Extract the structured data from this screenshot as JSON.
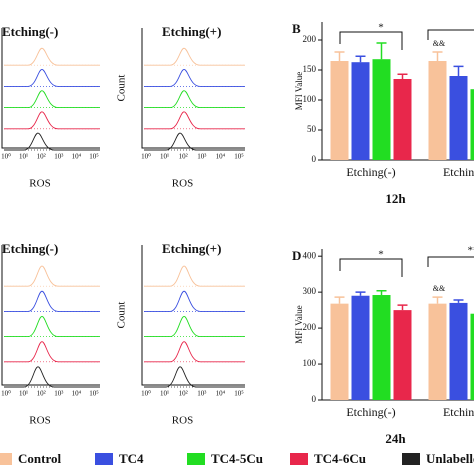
{
  "groups": [
    {
      "name": "Control",
      "color": "#f8c29a"
    },
    {
      "name": "TC4",
      "color": "#3a4fe0"
    },
    {
      "name": "TC4-5Cu",
      "color": "#22dd22"
    },
    {
      "name": "TC4-6Cu",
      "color": "#e8274b"
    },
    {
      "name": "Unlabelled",
      "color": "#222222"
    }
  ],
  "histograms": [
    {
      "title": "Etching(-)",
      "xlabel": "ROS",
      "xticks": [
        "10⁰",
        "10¹",
        "10²",
        "10³",
        "10⁴",
        "10⁵"
      ]
    },
    {
      "title": "Etching(+)",
      "xlabel": "ROS",
      "ylabel": "Count",
      "xticks": [
        "10⁰",
        "10¹",
        "10²",
        "10³",
        "10⁴",
        "10⁵"
      ]
    },
    {
      "title": "Etching(-)",
      "xlabel": "ROS",
      "xticks": [
        "10⁰",
        "10¹",
        "10²",
        "10³",
        "10⁴",
        "10⁵"
      ]
    },
    {
      "title": "Etching(+)",
      "xlabel": "ROS",
      "ylabel": "Count",
      "xticks": [
        "10⁰",
        "10¹",
        "10²",
        "10³",
        "10⁴",
        "10⁵"
      ]
    }
  ],
  "chart_data": [
    {
      "type": "bar",
      "label": "B",
      "ylabel": "MFI Value",
      "subtitle": "12h",
      "categories": [
        "Etching(-)",
        "Etching(+)"
      ],
      "ylim": [
        0,
        230
      ],
      "yticks": [
        0,
        50,
        100,
        150,
        200
      ],
      "series": [
        {
          "values": [
            165,
            165
          ],
          "errors": [
            15,
            15
          ]
        },
        {
          "values": [
            163,
            140
          ],
          "errors": [
            10,
            16
          ]
        },
        {
          "values": [
            168,
            118
          ],
          "errors": [
            27,
            10
          ]
        },
        {
          "values": [
            135,
            null
          ],
          "errors": [
            8,
            null
          ]
        }
      ],
      "annotations": [
        "*",
        "&&"
      ]
    },
    {
      "type": "bar",
      "label": "D",
      "ylabel": "MFI Value",
      "subtitle": "24h",
      "categories": [
        "Etching(-)",
        "Etching(+)"
      ],
      "ylim": [
        0,
        420
      ],
      "yticks": [
        0,
        100,
        200,
        300,
        400
      ],
      "series": [
        {
          "values": [
            268,
            268
          ],
          "errors": [
            18,
            18
          ]
        },
        {
          "values": [
            290,
            270
          ],
          "errors": [
            10,
            8
          ]
        },
        {
          "values": [
            292,
            240
          ],
          "errors": [
            12,
            10
          ]
        },
        {
          "values": [
            250,
            null
          ],
          "errors": [
            14,
            null
          ]
        }
      ],
      "annotations": [
        "*",
        "&&",
        "**"
      ]
    }
  ]
}
